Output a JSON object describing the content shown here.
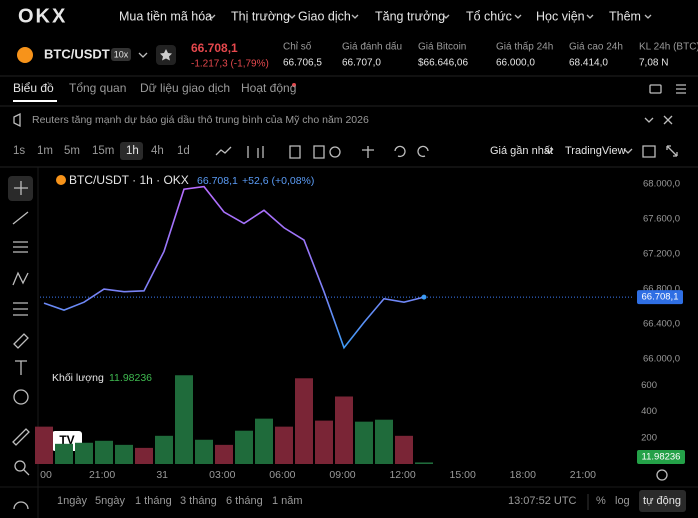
{
  "nav": {
    "logo": "OKX",
    "menu": [
      "Mua tiền mã hóa",
      "Thị trường",
      "Giao dịch",
      "Tăng trưởng",
      "Tổ chức",
      "Học viện",
      "Thêm"
    ]
  },
  "ticker": {
    "pair": "BTC/USDT",
    "leverage": "10x",
    "price": "66.708,1",
    "change": "-1.217,3 (-1,79%)",
    "stats": [
      {
        "label": "Chỉ số",
        "value": "66.706,5"
      },
      {
        "label": "Giá đánh dấu",
        "value": "66.707,0"
      },
      {
        "label": "Giá Bitcoin",
        "value": "$66.646,06"
      },
      {
        "label": "Giá thấp 24h",
        "value": "66.000,0"
      },
      {
        "label": "Giá cao 24h",
        "value": "68.414,0"
      },
      {
        "label": "KL 24h (BTC)",
        "value": "7,08 N"
      }
    ]
  },
  "tabs": [
    "Biểu đồ",
    "Tổng quan",
    "Dữ liệu giao dịch",
    "Hoạt động"
  ],
  "news": "Reuters tăng mạnh dự báo giá dầu thô trung bình của Mỹ cho năm 2026",
  "intervals": [
    "1s",
    "1m",
    "5m",
    "15m",
    "1h",
    "4h",
    "1d"
  ],
  "toolbar_right": [
    "Giá gần nhất",
    "TradingView"
  ],
  "chart": {
    "legend": {
      "title": "BTC/USDT · 1h · OKX",
      "last": "66.708,1",
      "change": "+52,6 (+0,08%)"
    },
    "price": {
      "values": [
        66640,
        66560,
        66650,
        66800,
        66770,
        66780,
        67230,
        67940,
        67970,
        67680,
        67550,
        67700,
        67500,
        67360,
        66770,
        66130,
        66420,
        66690,
        66650,
        66708.1
      ],
      "ylim": [
        65910,
        68160
      ],
      "yticks": [
        {
          "value": 68000,
          "label": "68.000,0"
        },
        {
          "value": 67600,
          "label": "67.600,0"
        },
        {
          "value": 67200,
          "label": "67.200,0"
        },
        {
          "value": 66800,
          "label": "66.800,0"
        },
        {
          "value": 66400,
          "label": "66.400,0"
        },
        {
          "value": 66000,
          "label": "66.000,0"
        }
      ]
    },
    "last_price": {
      "value": 66708.1,
      "label": "66.708,1"
    },
    "volume": {
      "name": "Khối lượng",
      "last": "11.98236",
      "values": [
        285,
        154,
        162,
        177,
        146,
        123,
        215,
        677,
        185,
        146,
        254,
        346,
        285,
        654,
        331,
        515,
        323,
        338,
        215,
        11.98236
      ],
      "colors": [
        "#7a2536",
        "#1f6b3b",
        "#1f6b3b",
        "#1f6b3b",
        "#1f6b3b",
        "#7a2536",
        "#1f6b3b",
        "#1f6b3b",
        "#1f6b3b",
        "#7a2536",
        "#1f6b3b",
        "#1f6b3b",
        "#7a2536",
        "#7a2536",
        "#7a2536",
        "#7a2536",
        "#1f6b3b",
        "#1f6b3b",
        "#7a2536",
        "#1f6b3b"
      ],
      "ylim": [
        0,
        740
      ],
      "yticks": [
        600,
        400,
        200
      ]
    },
    "time_labels": [
      "00",
      "21:00",
      "31",
      "03:00",
      "06:00",
      "09:00",
      "12:00",
      "15:00",
      "18:00",
      "21:00"
    ]
  },
  "bottom": {
    "ranges": [
      "1ngày",
      "5ngày",
      "1 tháng",
      "3 tháng",
      "6 tháng",
      "1 năm"
    ],
    "clock": "13:07:52 UTC",
    "percent": "%",
    "log": "log",
    "auto": "tự động"
  }
}
